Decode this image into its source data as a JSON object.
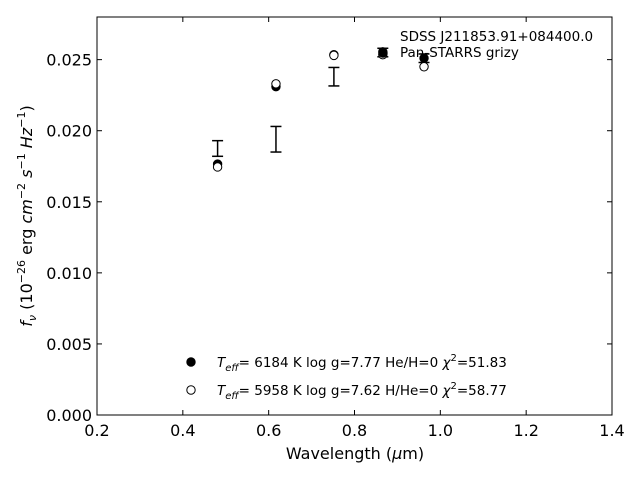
{
  "chart_data": {
    "type": "scatter",
    "title": "",
    "xlabel": "Wavelength (μm)",
    "ylabel": "f_ν (10^-26 erg cm^-2 s^-1 Hz^-1)",
    "xlim": [
      0.2,
      1.4
    ],
    "ylim": [
      0.0,
      0.028
    ],
    "x_ticks": [
      0.2,
      0.4,
      0.6,
      0.8,
      1.0,
      1.2,
      1.4
    ],
    "x_tick_labels": [
      "0.2",
      "0.4",
      "0.6",
      "0.8",
      "1.0",
      "1.2",
      "1.4"
    ],
    "y_ticks": [
      0.0,
      0.005,
      0.01,
      0.015,
      0.02,
      0.025
    ],
    "y_tick_labels": [
      "0.000",
      "0.005",
      "0.010",
      "0.015",
      "0.020",
      "0.025"
    ],
    "grid": false,
    "legend_position": "top-right",
    "legend": {
      "object_name": "SDSS J211853.91+084400.0",
      "photometry_label": "Pan-STARRS grizy"
    },
    "series": [
      {
        "name": "Pan-STARRS grizy",
        "marker": "errorbar",
        "x": [
          0.481,
          0.617,
          0.752,
          0.866,
          0.962
        ],
        "y": [
          0.01875,
          0.0194,
          0.0238,
          0.0255,
          0.0251
        ],
        "yerr": [
          0.00055,
          0.0009,
          0.00065,
          0.0003,
          0.0003
        ]
      },
      {
        "name": "Teff = 6184 K log g=7.77 He/H=0 χ²=51.83",
        "marker": "filled-circle",
        "x": [
          0.481,
          0.617,
          0.752,
          0.866,
          0.962
        ],
        "y": [
          0.01765,
          0.0231,
          0.02535,
          0.02555,
          0.0251
        ]
      },
      {
        "name": "Teff = 5958 K log g=7.62 H/He=0 χ²=58.77",
        "marker": "open-circle",
        "x": [
          0.481,
          0.617,
          0.752,
          0.866,
          0.962
        ],
        "y": [
          0.01745,
          0.0233,
          0.0253,
          0.02535,
          0.0245
        ]
      }
    ],
    "model_legend": [
      {
        "marker": "filled-circle",
        "teff_symbol": "T",
        "teff_sub": "eff",
        "teff_value": "=  6184 K",
        "logg": "log g=7.77",
        "comp": "He/H=0",
        "chi_symbol": "χ",
        "chi_sup": "2",
        "chi_value": "=51.83"
      },
      {
        "marker": "open-circle",
        "teff_symbol": "T",
        "teff_sub": "eff",
        "teff_value": "=  5958 K",
        "logg": "log g=7.62",
        "comp": "H/He=0",
        "chi_symbol": "χ",
        "chi_sup": "2",
        "chi_value": "=58.77"
      }
    ],
    "colors": {
      "marker": "#000000",
      "axes": "#000000",
      "background": "#ffffff"
    }
  }
}
